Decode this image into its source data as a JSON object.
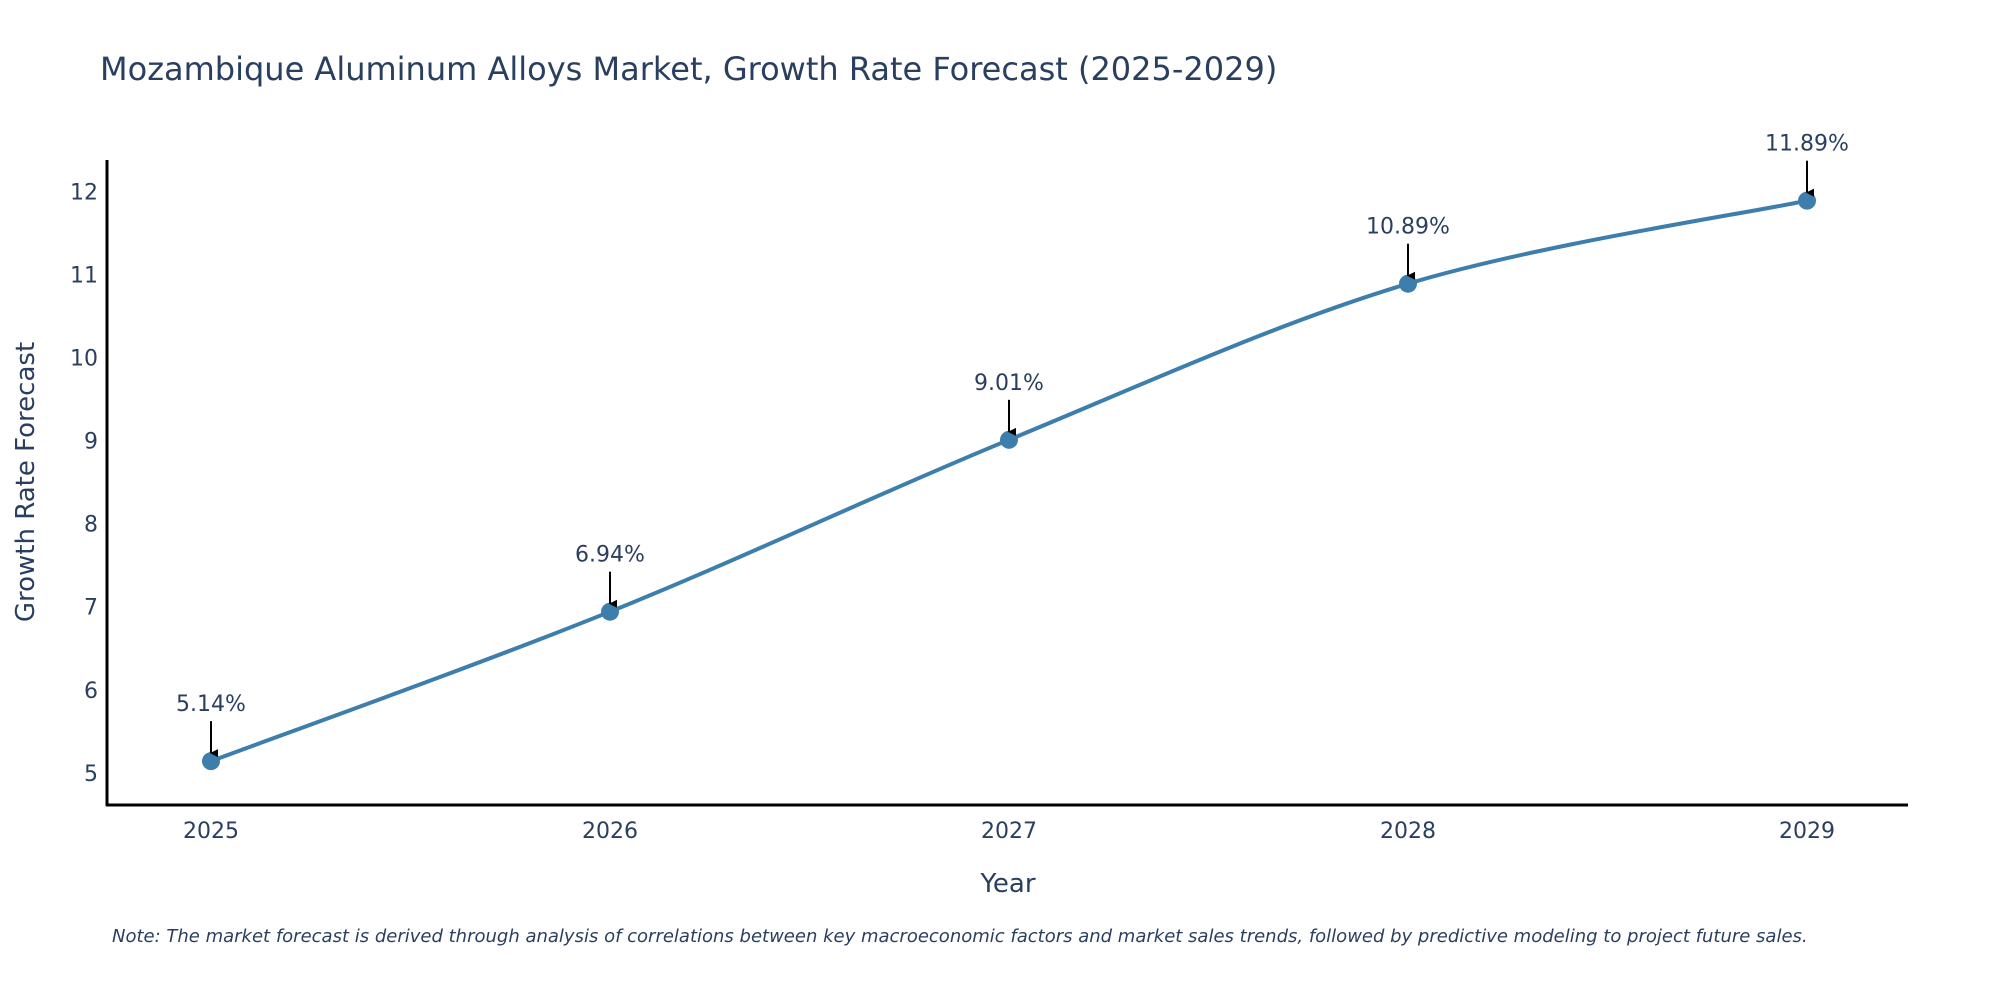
{
  "chart_data": {
    "type": "line",
    "title": "Mozambique Aluminum Alloys Market, Growth Rate Forecast (2025-2029)",
    "xlabel": "Year",
    "ylabel": "Growth Rate Forecast",
    "categories": [
      "2025",
      "2026",
      "2027",
      "2028",
      "2029"
    ],
    "values": [
      5.14,
      6.94,
      9.01,
      10.89,
      11.89
    ],
    "point_labels": [
      "5.14%",
      "6.94%",
      "9.01%",
      "10.89%",
      "11.89%"
    ],
    "y_ticks": [
      "5",
      "6",
      "7",
      "8",
      "9",
      "10",
      "11",
      "12"
    ],
    "ylim": [
      4.6,
      12.38
    ],
    "line_shape": "spline",
    "grid": false,
    "line_color": "#3d7ead",
    "marker_color": "#3d7ead",
    "arrow_color": "#000000",
    "note": "Note: The market forecast is derived through analysis of correlations between key macroeconomic factors and market sales trends, followed by predictive modeling to project future sales."
  }
}
